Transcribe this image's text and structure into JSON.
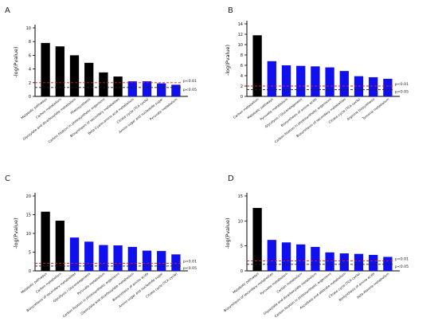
{
  "figure": {
    "colors": {
      "dark_bar": "#000000",
      "blue_bar": "#1010ee",
      "cutoff_line": "#d42020",
      "significance_line": "#222222"
    }
  },
  "chart_data": [
    {
      "panel_label": "A",
      "type": "bar",
      "ylabel": "-log(Pvalue)",
      "ylim": [
        0,
        10
      ],
      "yticks": [
        0,
        2,
        4,
        6,
        8,
        10
      ],
      "categories": [
        "Metabolic pathways",
        "Carbon metabolism",
        "Glyoxylate and dicarboxylate metabolism",
        "Photosynthesis",
        "Carbon fixation in photosynthetic organisms",
        "Biosynthesis of secondary metabolites",
        "Beta-Cyano-amino acid metabolism",
        "Citrate cycle (TCA cycle)",
        "Amino sugar and nucleotide sugar",
        "Pyruvate metabolism"
      ],
      "values": [
        7.8,
        7.3,
        6.0,
        4.9,
        3.5,
        2.9,
        2.2,
        2.2,
        1.9,
        1.7
      ],
      "bar_colors": [
        "dark",
        "dark",
        "dark",
        "dark",
        "dark",
        "dark",
        "blue",
        "blue",
        "blue",
        "blue"
      ],
      "reference_lines": [
        {
          "label": "p<0.01",
          "value": 2.0
        },
        {
          "label": "p<0.05",
          "value": 1.3
        }
      ]
    },
    {
      "panel_label": "B",
      "type": "bar",
      "ylabel": "-log(Pvalue)",
      "ylim": [
        0,
        14
      ],
      "yticks": [
        0,
        2,
        4,
        6,
        8,
        10,
        12,
        14
      ],
      "categories": [
        "Carbon metabolism",
        "Metabolic pathways",
        "Pyruvate metabolism",
        "Glycolysis / Gluconeogenesis",
        "Biosynthesis of amino acids",
        "Carbon fixation in photosynthetic organisms",
        "Biosynthesis of secondary metabolites",
        "Citrate cycle (TCA cycle)",
        "Arginine biosynthesis",
        "Tyrosine metabolism"
      ],
      "values": [
        11.8,
        6.8,
        6.0,
        5.9,
        5.8,
        5.6,
        4.9,
        3.9,
        3.7,
        3.4
      ],
      "bar_colors": [
        "dark",
        "blue",
        "blue",
        "blue",
        "blue",
        "blue",
        "blue",
        "blue",
        "blue",
        "blue"
      ],
      "reference_lines": [
        {
          "label": "p<0.01",
          "value": 2.0
        },
        {
          "label": "p<0.05",
          "value": 1.3
        }
      ]
    },
    {
      "panel_label": "C",
      "type": "bar",
      "ylabel": "-log(Pvalue)",
      "ylim": [
        0,
        20
      ],
      "yticks": [
        0,
        5,
        10,
        15,
        20
      ],
      "categories": [
        "Metabolic pathways",
        "Carbon metabolism",
        "Biosynthesis of secondary metabolites",
        "Glycolysis / Gluconeogenesis",
        "Pyruvate metabolism",
        "Carbon fixation in photosynthetic organisms",
        "Glyoxylate and dicarboxylate metabolism",
        "Biosynthesis of amino acids",
        "Amino sugar and nucleotide sugar",
        "Citrate cycle (TCA cycle)"
      ],
      "values": [
        15.8,
        13.4,
        8.9,
        7.8,
        6.9,
        6.8,
        6.4,
        5.4,
        5.3,
        4.4
      ],
      "bar_colors": [
        "dark",
        "dark",
        "blue",
        "blue",
        "blue",
        "blue",
        "blue",
        "blue",
        "blue",
        "blue"
      ],
      "reference_lines": [
        {
          "label": "p<0.01",
          "value": 2.0
        },
        {
          "label": "p<0.05",
          "value": 1.3
        }
      ]
    },
    {
      "panel_label": "D",
      "type": "bar",
      "ylabel": "-log(Pvalue)",
      "ylim": [
        0,
        15
      ],
      "yticks": [
        0,
        5,
        10,
        15
      ],
      "categories": [
        "Metabolic pathways",
        "Biosynthesis of secondary metabolites",
        "Pyruvate metabolism",
        "Carbon metabolism",
        "Glyoxylate and dicarboxylate metabolism",
        "Carbon fixation in photosynthetic organisms",
        "Ascorbate and aldarate metabolism",
        "Citrate cycle (TCA cycle)",
        "Biosynthesis of amino acids",
        "beta-Alanine metabolism"
      ],
      "values": [
        12.6,
        6.2,
        5.7,
        5.3,
        4.8,
        3.7,
        3.5,
        3.4,
        3.2,
        2.8
      ],
      "bar_colors": [
        "dark",
        "blue",
        "blue",
        "blue",
        "blue",
        "blue",
        "blue",
        "blue",
        "blue",
        "blue"
      ],
      "reference_lines": [
        {
          "label": "p<0.01",
          "value": 2.0
        },
        {
          "label": "p<0.05",
          "value": 1.3
        }
      ]
    }
  ]
}
